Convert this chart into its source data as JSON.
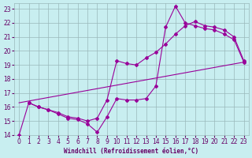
{
  "xlabel": "Windchill (Refroidissement éolien,°C)",
  "bg_color": "#c8eef0",
  "line_color": "#990099",
  "xlim": [
    -0.5,
    23.5
  ],
  "ylim": [
    14,
    23.4
  ],
  "xticks": [
    0,
    1,
    2,
    3,
    4,
    5,
    6,
    7,
    8,
    9,
    10,
    11,
    12,
    13,
    14,
    15,
    16,
    17,
    18,
    19,
    20,
    21,
    22,
    23
  ],
  "yticks": [
    14,
    15,
    16,
    17,
    18,
    19,
    20,
    21,
    22,
    23
  ],
  "line1_x": [
    0,
    1,
    2,
    3,
    4,
    5,
    6,
    7,
    8,
    9,
    10,
    11,
    12,
    13,
    14,
    15,
    16,
    17,
    18,
    19,
    20,
    21,
    22,
    23
  ],
  "line1_y": [
    14.0,
    16.3,
    16.0,
    15.8,
    15.5,
    15.2,
    15.1,
    14.8,
    14.2,
    15.3,
    16.6,
    16.5,
    16.5,
    16.6,
    17.5,
    21.7,
    23.2,
    22.0,
    21.8,
    21.6,
    21.5,
    21.2,
    20.8,
    19.2
  ],
  "line2_x": [
    1,
    2,
    3,
    4,
    5,
    6,
    7,
    8,
    9,
    10,
    11,
    12,
    13,
    14,
    15,
    16,
    17,
    18,
    19,
    20,
    21,
    22,
    23
  ],
  "line2_y": [
    16.3,
    16.0,
    15.8,
    15.6,
    15.3,
    15.2,
    15.0,
    15.2,
    16.5,
    19.3,
    19.1,
    19.0,
    19.5,
    19.9,
    20.5,
    21.2,
    21.8,
    22.1,
    21.8,
    21.7,
    21.5,
    21.0,
    19.3
  ],
  "line3_x": [
    0,
    23
  ],
  "line3_y": [
    16.3,
    19.2
  ],
  "grid_color": "#9ab8ba",
  "font_color": "#660066",
  "tick_fontsize": 5.5,
  "xlabel_fontsize": 5.5
}
